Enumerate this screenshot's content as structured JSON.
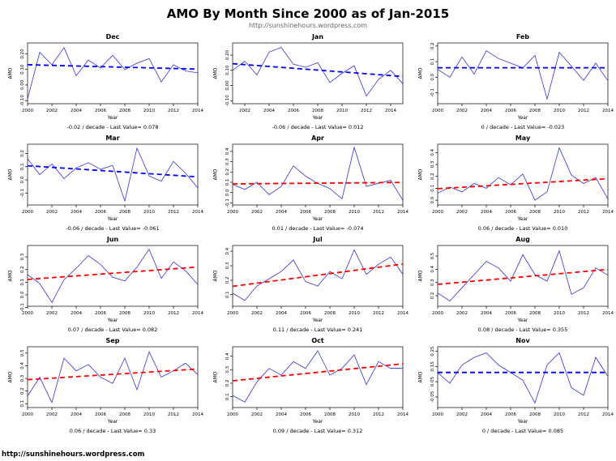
{
  "page": {
    "title": "AMO By Month Since 2000 as of Jan-2015",
    "subtitle": "http://sunshinehours.wordpress.com",
    "footer": "http://sunshinehours.wordpress.com"
  },
  "colors": {
    "series": "#3333cc",
    "trend_up": "#ff0000",
    "trend_down": "#0000ff"
  },
  "chart_data": [
    {
      "type": "line",
      "title": "Dec",
      "xlabel": "Year",
      "ylabel": "AMO",
      "x": [
        2000,
        2001,
        2002,
        2003,
        2004,
        2005,
        2006,
        2007,
        2008,
        2009,
        2010,
        2011,
        2012,
        2013,
        2014
      ],
      "values": [
        -0.09,
        0.21,
        0.13,
        0.24,
        0.06,
        0.16,
        0.11,
        0.19,
        0.1,
        0.14,
        0.17,
        0.02,
        0.13,
        0.09,
        0.078
      ],
      "ylim": [
        -0.12,
        0.27
      ],
      "yticks": [
        -0.1,
        0.0,
        0.1,
        0.2
      ],
      "ydecimals": 2,
      "xticks": [
        2000,
        2002,
        2004,
        2006,
        2008,
        2010,
        2012,
        2014
      ],
      "trend": {
        "slope_per_decade": -0.02,
        "direction": "down",
        "caption": "-0.02 / decade - Last Value= 0.078"
      }
    },
    {
      "type": "line",
      "title": "Jan",
      "xlabel": "Year",
      "ylabel": "AMO",
      "x": [
        2001,
        2002,
        2003,
        2004,
        2005,
        2006,
        2007,
        2008,
        2009,
        2010,
        2011,
        2012,
        2013,
        2014,
        2015
      ],
      "values": [
        0.1,
        0.16,
        0.07,
        0.22,
        0.25,
        0.14,
        0.12,
        0.15,
        0.02,
        0.08,
        0.13,
        -0.07,
        0.04,
        0.1,
        0.012
      ],
      "ylim": [
        -0.12,
        0.28
      ],
      "yticks": [
        -0.1,
        0.0,
        0.1,
        0.2
      ],
      "ydecimals": 2,
      "xticks": [
        2002,
        2004,
        2006,
        2008,
        2010,
        2012,
        2014
      ],
      "trend": {
        "slope_per_decade": -0.06,
        "direction": "down",
        "caption": "-0.06 / decade - Last Value= 0.012"
      }
    },
    {
      "type": "line",
      "title": "Feb",
      "xlabel": "Year",
      "ylabel": "AMO",
      "x": [
        2000,
        2001,
        2002,
        2003,
        2004,
        2005,
        2006,
        2007,
        2008,
        2009,
        2010,
        2011,
        2012,
        2013,
        2014
      ],
      "values": [
        0.05,
        0.0,
        0.13,
        0.02,
        0.17,
        0.12,
        0.09,
        0.06,
        0.14,
        -0.14,
        0.16,
        0.07,
        -0.02,
        0.09,
        -0.023
      ],
      "ylim": [
        -0.17,
        0.22
      ],
      "yticks": [
        -0.1,
        0.0,
        0.1,
        0.2
      ],
      "ydecimals": 1,
      "xticks": [
        2000,
        2002,
        2004,
        2006,
        2008,
        2010,
        2012,
        2014
      ],
      "trend": {
        "slope_per_decade": 0,
        "direction": "down",
        "caption": "0 / decade - Last Value= -0.023"
      }
    },
    {
      "type": "line",
      "title": "Mar",
      "xlabel": "Year",
      "ylabel": "AMO",
      "x": [
        2000,
        2001,
        2002,
        2003,
        2004,
        2005,
        2006,
        2007,
        2008,
        2009,
        2010,
        2011,
        2012,
        2013,
        2014
      ],
      "values": [
        0.16,
        0.04,
        0.12,
        0.01,
        0.09,
        0.13,
        0.08,
        0.11,
        -0.16,
        0.24,
        0.03,
        -0.01,
        0.14,
        0.05,
        -0.061
      ],
      "ylim": [
        -0.19,
        0.27
      ],
      "yticks": [
        -0.1,
        0.0,
        0.1,
        0.2
      ],
      "ydecimals": 1,
      "xticks": [
        2000,
        2002,
        2004,
        2006,
        2008,
        2010,
        2012,
        2014
      ],
      "trend": {
        "slope_per_decade": -0.06,
        "direction": "down",
        "caption": "-0.06 / decade - Last Value= -0.061"
      }
    },
    {
      "type": "line",
      "title": "Apr",
      "xlabel": "Year",
      "ylabel": "AMO",
      "x": [
        2000,
        2001,
        2002,
        2003,
        2004,
        2005,
        2006,
        2007,
        2008,
        2009,
        2010,
        2011,
        2012,
        2013,
        2014
      ],
      "values": [
        0.08,
        0.03,
        0.1,
        -0.02,
        0.06,
        0.26,
        0.16,
        0.09,
        0.04,
        -0.06,
        0.44,
        0.06,
        0.09,
        0.12,
        -0.074
      ],
      "ylim": [
        -0.12,
        0.47
      ],
      "yticks": [
        -0.1,
        0.0,
        0.1,
        0.2,
        0.3,
        0.4
      ],
      "ydecimals": 1,
      "xticks": [
        2000,
        2002,
        2004,
        2006,
        2008,
        2010,
        2012,
        2014
      ],
      "trend": {
        "slope_per_decade": 0.01,
        "direction": "up",
        "caption": "0.01 / decade - Last Value= -0.074"
      }
    },
    {
      "type": "line",
      "title": "May",
      "xlabel": "Year",
      "ylabel": "AMO",
      "x": [
        2000,
        2001,
        2002,
        2003,
        2004,
        2005,
        2006,
        2007,
        2008,
        2009,
        2010,
        2011,
        2012,
        2013,
        2014
      ],
      "values": [
        0.06,
        0.11,
        0.07,
        0.14,
        0.1,
        0.19,
        0.13,
        0.22,
        0.0,
        0.07,
        0.44,
        0.21,
        0.14,
        0.19,
        0.01
      ],
      "ylim": [
        -0.04,
        0.47
      ],
      "yticks": [
        0.0,
        0.1,
        0.2,
        0.3,
        0.4
      ],
      "ydecimals": 1,
      "xticks": [
        2000,
        2002,
        2004,
        2006,
        2008,
        2010,
        2012,
        2014
      ],
      "trend": {
        "slope_per_decade": 0.06,
        "direction": "up",
        "caption": "0.06 / decade - Last Value= 0.010"
      }
    },
    {
      "type": "line",
      "title": "Jun",
      "xlabel": "Year",
      "ylabel": "AMO",
      "x": [
        2000,
        2001,
        2002,
        2003,
        2004,
        2005,
        2006,
        2007,
        2008,
        2009,
        2010,
        2011,
        2012,
        2013,
        2014
      ],
      "values": [
        0.16,
        0.09,
        -0.06,
        0.12,
        0.21,
        0.31,
        0.24,
        0.14,
        0.11,
        0.22,
        0.36,
        0.13,
        0.26,
        0.19,
        0.082
      ],
      "ylim": [
        -0.09,
        0.39
      ],
      "yticks": [
        -0.1,
        0.0,
        0.1,
        0.2,
        0.3
      ],
      "ydecimals": 1,
      "xticks": [
        2000,
        2002,
        2004,
        2006,
        2008,
        2010,
        2012,
        2014
      ],
      "trend": {
        "slope_per_decade": 0.07,
        "direction": "up",
        "caption": "0.07 / decade - Last Value= 0.082"
      }
    },
    {
      "type": "line",
      "title": "Jul",
      "xlabel": "Year",
      "ylabel": "AMO",
      "x": [
        2000,
        2001,
        2002,
        2003,
        2004,
        2005,
        2006,
        2007,
        2008,
        2009,
        2010,
        2011,
        2012,
        2013,
        2014
      ],
      "values": [
        0.11,
        0.06,
        0.16,
        0.21,
        0.26,
        0.34,
        0.19,
        0.16,
        0.26,
        0.21,
        0.41,
        0.24,
        0.31,
        0.36,
        0.241
      ],
      "ylim": [
        0.02,
        0.44
      ],
      "yticks": [
        0.1,
        0.2,
        0.3,
        0.4
      ],
      "ydecimals": 1,
      "xticks": [
        2000,
        2002,
        2004,
        2006,
        2008,
        2010,
        2012,
        2014
      ],
      "trend": {
        "slope_per_decade": 0.11,
        "direction": "up",
        "caption": "0.11 / decade - Last Value= 0.241"
      }
    },
    {
      "type": "line",
      "title": "Aug",
      "xlabel": "Year",
      "ylabel": "AMO",
      "x": [
        2000,
        2001,
        2002,
        2003,
        2004,
        2005,
        2006,
        2007,
        2008,
        2009,
        2010,
        2011,
        2012,
        2013,
        2014
      ],
      "values": [
        0.22,
        0.16,
        0.26,
        0.36,
        0.46,
        0.41,
        0.31,
        0.51,
        0.36,
        0.31,
        0.54,
        0.21,
        0.26,
        0.41,
        0.355
      ],
      "ylim": [
        0.12,
        0.58
      ],
      "yticks": [
        0.2,
        0.3,
        0.4,
        0.5
      ],
      "ydecimals": 1,
      "xticks": [
        2000,
        2002,
        2004,
        2006,
        2008,
        2010,
        2012,
        2014
      ],
      "trend": {
        "slope_per_decade": 0.08,
        "direction": "up",
        "caption": "0.08 / decade - Last Value= 0.355"
      }
    },
    {
      "type": "line",
      "title": "Sep",
      "xlabel": "Year",
      "ylabel": "AMO",
      "x": [
        2000,
        2001,
        2002,
        2003,
        2004,
        2005,
        2006,
        2007,
        2008,
        2009,
        2010,
        2011,
        2012,
        2013,
        2014
      ],
      "values": [
        0.16,
        0.31,
        0.11,
        0.46,
        0.36,
        0.41,
        0.31,
        0.26,
        0.46,
        0.21,
        0.51,
        0.31,
        0.36,
        0.42,
        0.33
      ],
      "ylim": [
        0.07,
        0.55
      ],
      "yticks": [
        0.1,
        0.2,
        0.3,
        0.4,
        0.5
      ],
      "ydecimals": 1,
      "xticks": [
        2000,
        2002,
        2004,
        2006,
        2008,
        2010,
        2012,
        2014
      ],
      "trend": {
        "slope_per_decade": 0.06,
        "direction": "up",
        "caption": "0.06 / decade - Last Value= 0.33"
      }
    },
    {
      "type": "line",
      "title": "Oct",
      "xlabel": "Year",
      "ylabel": "AMO",
      "x": [
        2000,
        2001,
        2002,
        2003,
        2004,
        2005,
        2006,
        2007,
        2008,
        2009,
        2010,
        2011,
        2012,
        2013,
        2014
      ],
      "values": [
        0.11,
        0.06,
        0.21,
        0.31,
        0.26,
        0.36,
        0.31,
        0.44,
        0.26,
        0.31,
        0.41,
        0.19,
        0.36,
        0.31,
        0.312
      ],
      "ylim": [
        0.02,
        0.47
      ],
      "yticks": [
        0.1,
        0.2,
        0.3,
        0.4
      ],
      "ydecimals": 1,
      "xticks": [
        2000,
        2002,
        2004,
        2006,
        2008,
        2010,
        2012,
        2014
      ],
      "trend": {
        "slope_per_decade": 0.09,
        "direction": "up",
        "caption": "0.09 / decade - Last Value= 0.312"
      }
    },
    {
      "type": "line",
      "title": "Nov",
      "xlabel": "Year",
      "ylabel": "AMO",
      "x": [
        2000,
        2001,
        2002,
        2003,
        2004,
        2005,
        2006,
        2007,
        2008,
        2009,
        2010,
        2011,
        2012,
        2013,
        2014
      ],
      "values": [
        0.11,
        0.04,
        0.16,
        0.21,
        0.24,
        0.16,
        0.11,
        0.06,
        -0.09,
        0.16,
        0.24,
        0.01,
        -0.04,
        0.21,
        0.085
      ],
      "ylim": [
        -0.12,
        0.28
      ],
      "yticks": [
        -0.05,
        0.05,
        0.15,
        0.25
      ],
      "ydecimals": 2,
      "xticks": [
        2000,
        2002,
        2004,
        2006,
        2008,
        2010,
        2012,
        2014
      ],
      "trend": {
        "slope_per_decade": 0,
        "direction": "down",
        "caption": "0 / decade - Last Value= 0.085"
      }
    }
  ]
}
